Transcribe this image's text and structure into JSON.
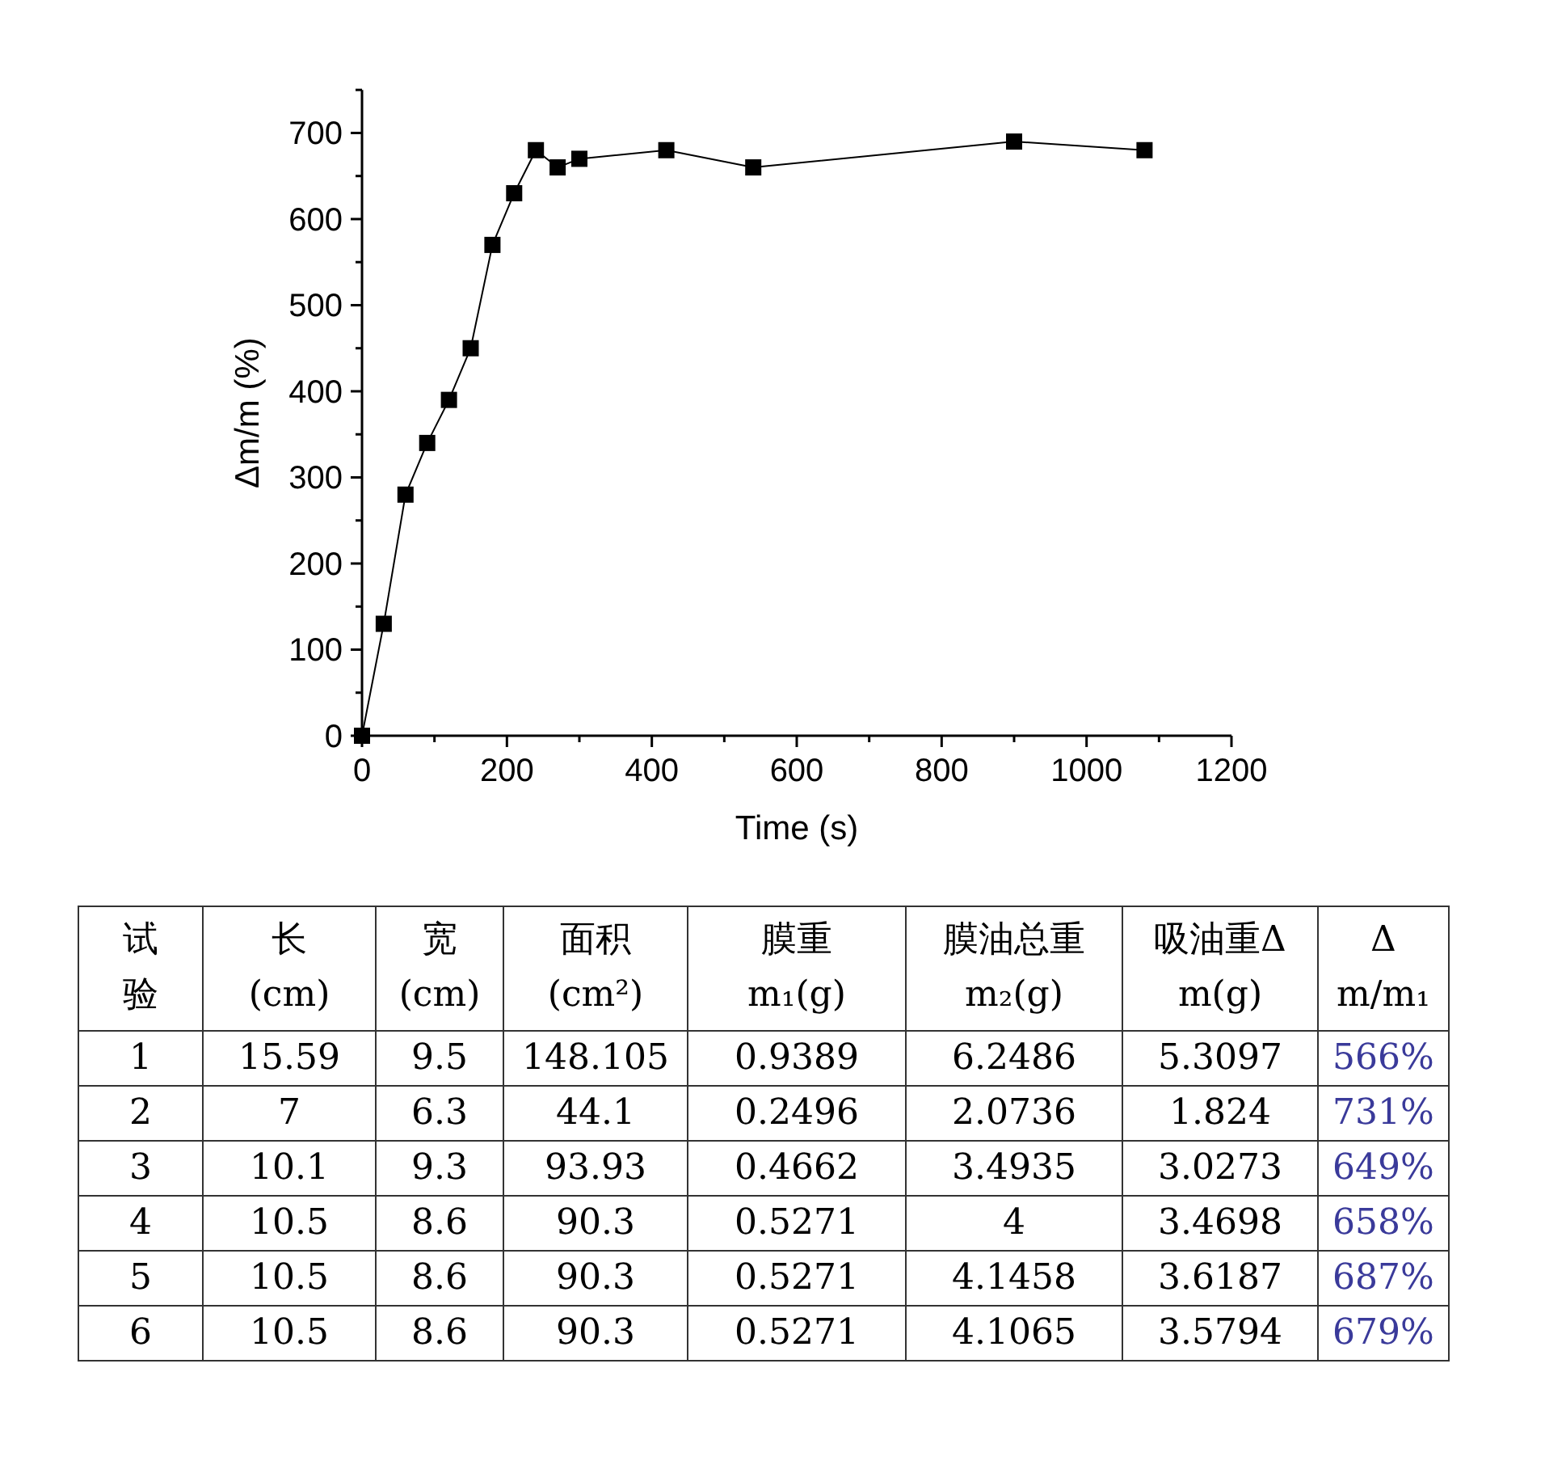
{
  "chart_data": [
    {
      "type": "line",
      "xlabel": "Time (s)",
      "ylabel": "Δm/m (%)",
      "x": [
        0,
        30,
        60,
        90,
        120,
        150,
        180,
        210,
        240,
        270,
        300,
        420,
        540,
        900,
        1080
      ],
      "values": [
        0,
        130,
        280,
        340,
        390,
        450,
        570,
        630,
        680,
        660,
        670,
        680,
        660,
        690,
        680
      ],
      "color": "#000000",
      "marker": "square",
      "line_style": "solid",
      "xlim": [
        0,
        1200
      ],
      "xticks": [
        0,
        200,
        400,
        600,
        800,
        1000,
        1200
      ],
      "ylim": [
        0,
        750
      ],
      "yticks": [
        0,
        100,
        200,
        300,
        400,
        500,
        600,
        700
      ]
    },
    {
      "type": "heatmap",
      "ylabel": "试验",
      "categories": [
        "长\n(cm)",
        "宽\n(cm)",
        "面积\n(cm²)",
        "膜重\nm₁(g)",
        "膜油总重\nm₂(g)",
        "吸油重Δ\nm(g)",
        "Δ\nm/m₁"
      ],
      "y_categories": [
        "1",
        "2",
        "3",
        "4",
        "5",
        "6"
      ],
      "cells": [
        [
          15.59,
          9.5,
          148.105,
          0.9389,
          6.2486,
          5.3097,
          566
        ],
        [
          7,
          6.3,
          44.1,
          0.2496,
          2.0736,
          1.824,
          731
        ],
        [
          10.1,
          9.3,
          93.93,
          0.4662,
          3.4935,
          3.0273,
          649
        ],
        [
          10.5,
          8.6,
          90.3,
          0.5271,
          4,
          3.4698,
          658
        ],
        [
          10.5,
          8.6,
          90.3,
          0.5271,
          4.1458,
          3.6187,
          687
        ],
        [
          10.5,
          8.6,
          90.3,
          0.5271,
          4.1065,
          3.5794,
          679
        ]
      ],
      "cell_labels": [
        [
          "15.59",
          "9.5",
          "148.105",
          "0.9389",
          "6.2486",
          "5.3097",
          "566%"
        ],
        [
          "7",
          "6.3",
          "44.1",
          "0.2496",
          "2.0736",
          "1.824",
          "731%"
        ],
        [
          "10.1",
          "9.3",
          "93.93",
          "0.4662",
          "3.4935",
          "3.0273",
          "649%"
        ],
        [
          "10.5",
          "8.6",
          "90.3",
          "0.5271",
          "4",
          "3.4698",
          "658%"
        ],
        [
          "10.5",
          "8.6",
          "90.3",
          "0.5271",
          "4.1458",
          "3.6187",
          "687%"
        ],
        [
          "10.5",
          "8.6",
          "90.3",
          "0.5271",
          "4.1065",
          "3.5794",
          "679%"
        ]
      ]
    }
  ]
}
